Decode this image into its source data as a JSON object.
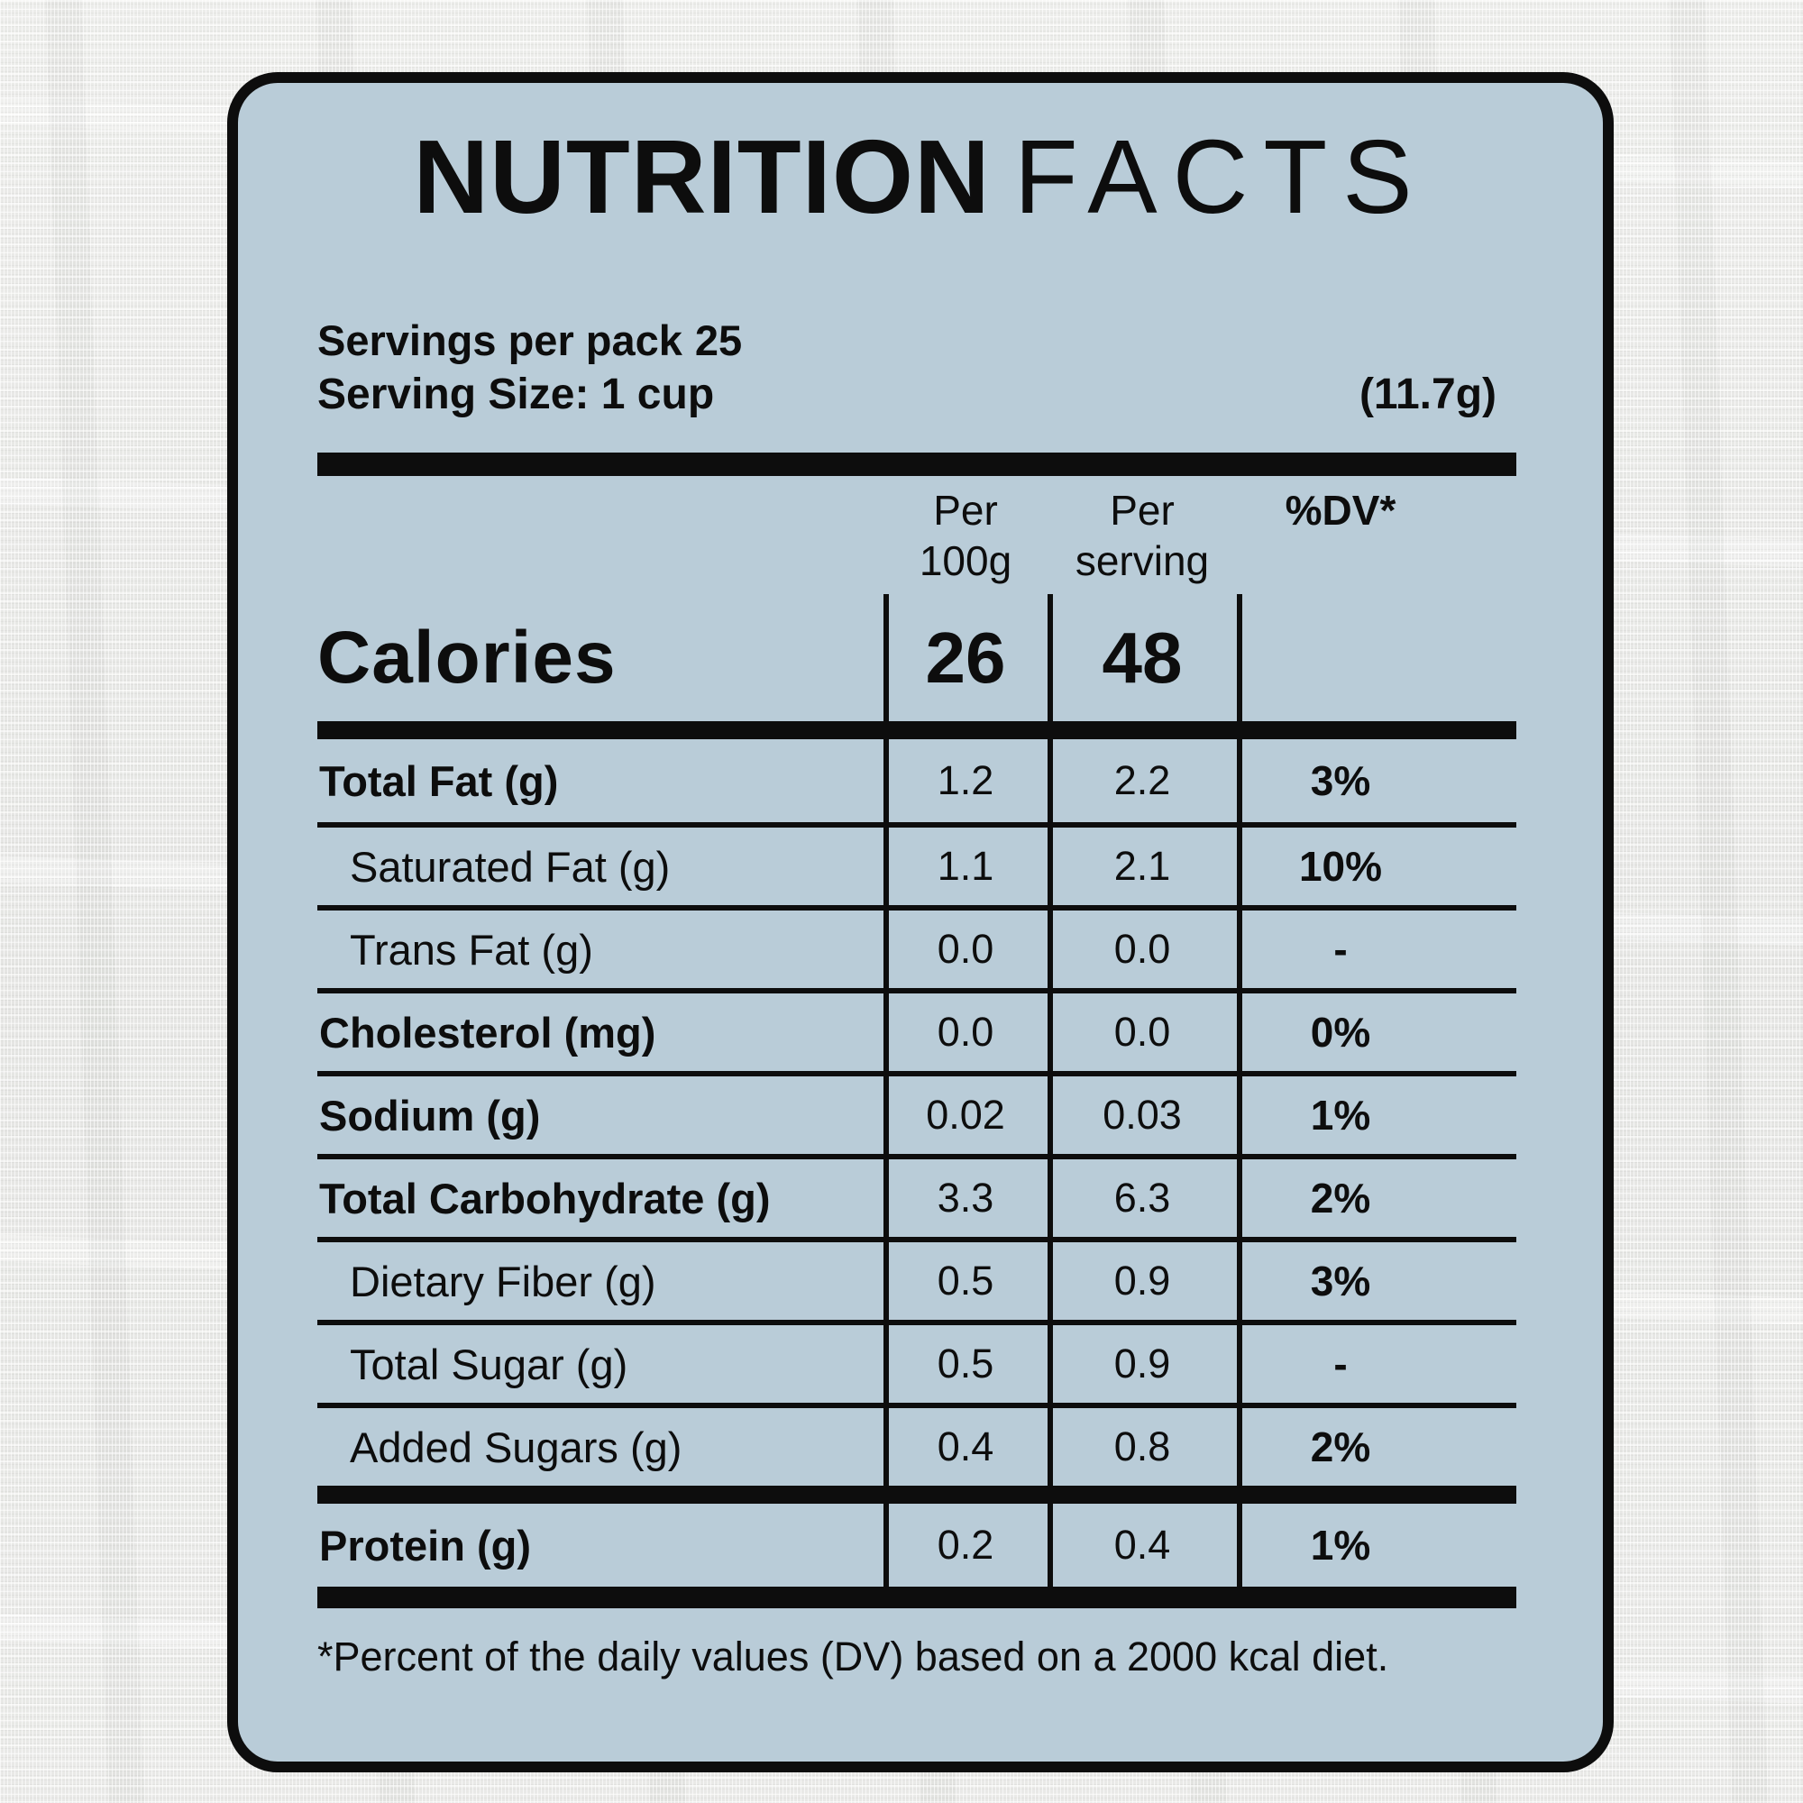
{
  "colors": {
    "card_background": "#b9ccd8",
    "ink": "#0d0d0d",
    "page_background": "#eeefed"
  },
  "title": {
    "word1": "NUTRITION",
    "word2": "FACTS"
  },
  "meta": {
    "servings_label": "Servings per pack",
    "servings_value": "25",
    "serving_size_label": "Serving Size: 1 cup",
    "serving_weight": "(11.7g)"
  },
  "table": {
    "columns": [
      "Per 100g",
      "Per serving",
      "%DV*"
    ],
    "calories": {
      "label": "Calories",
      "per_100g": "26",
      "per_serving": "48"
    },
    "rows": [
      {
        "label": "Total Fat (g)",
        "per_100g": "1.2",
        "per_serving": "2.2",
        "dv": "3%"
      },
      {
        "label": "Saturated Fat (g)",
        "per_100g": "1.1",
        "per_serving": "2.1",
        "dv": "10%"
      },
      {
        "label": "Trans Fat (g)",
        "per_100g": "0.0",
        "per_serving": "0.0",
        "dv": "-"
      },
      {
        "label": "Cholesterol (mg)",
        "per_100g": "0.0",
        "per_serving": "0.0",
        "dv": "0%"
      },
      {
        "label": "Sodium (g)",
        "per_100g": "0.02",
        "per_serving": "0.03",
        "dv": "1%"
      },
      {
        "label": "Total Carbohydrate (g)",
        "per_100g": "3.3",
        "per_serving": "6.3",
        "dv": "2%"
      },
      {
        "label": "Dietary Fiber (g)",
        "per_100g": "0.5",
        "per_serving": "0.9",
        "dv": "3%"
      },
      {
        "label": "Total Sugar (g)",
        "per_100g": "0.5",
        "per_serving": "0.9",
        "dv": "-"
      },
      {
        "label": "Added Sugars (g)",
        "per_100g": "0.4",
        "per_serving": "0.8",
        "dv": "2%"
      },
      {
        "label": "Protein (g)",
        "per_100g": "0.2",
        "per_serving": "0.4",
        "dv": "1%"
      }
    ]
  },
  "footnote": "*Percent of the daily values (DV) based on a 2000 kcal diet."
}
